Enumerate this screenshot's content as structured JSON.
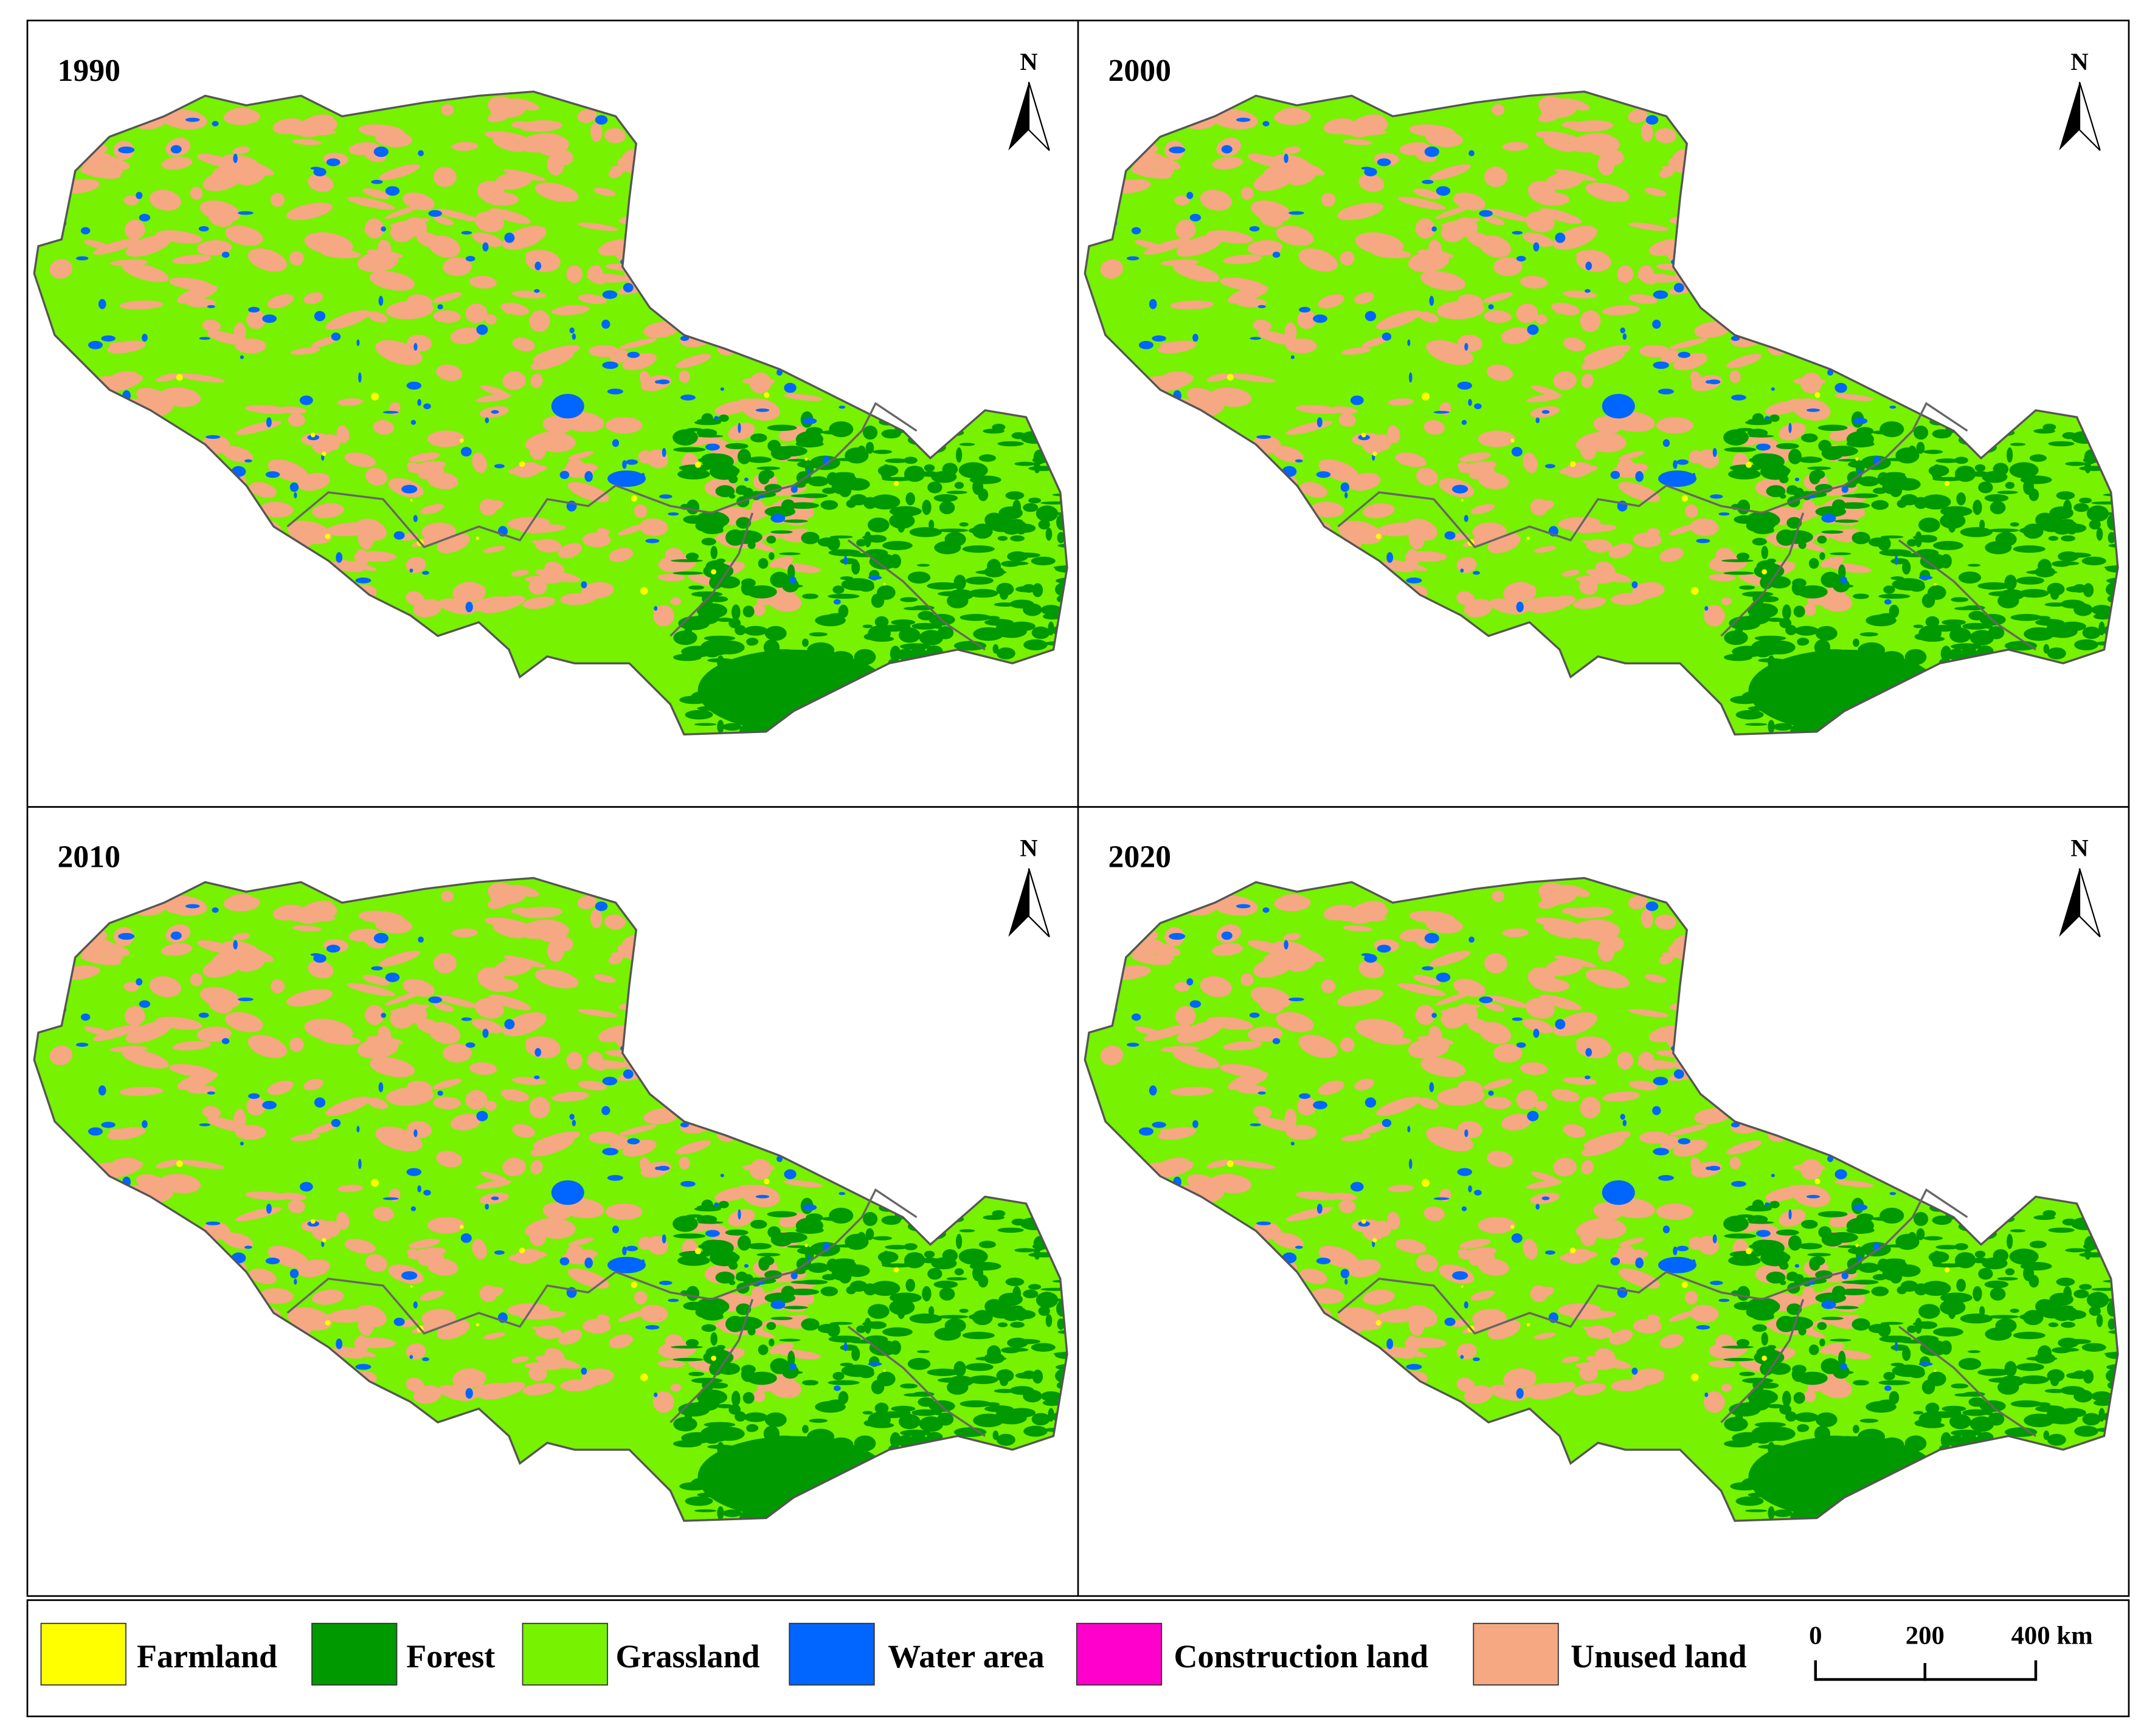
{
  "panels": [
    {
      "title": "1990",
      "north": "N"
    },
    {
      "title": "2000",
      "north": "N"
    },
    {
      "title": "2010",
      "north": "N"
    },
    {
      "title": "2020",
      "north": "N"
    }
  ],
  "legend": [
    {
      "label": "Farmland",
      "color": "#ffff00"
    },
    {
      "label": "Forest",
      "color": "#009900"
    },
    {
      "label": "Grassland",
      "color": "#77f200"
    },
    {
      "label": "Water area",
      "color": "#0066ff"
    },
    {
      "label": "Construction land",
      "color": "#ff00cc"
    },
    {
      "label": "Unused land",
      "color": "#f5a882"
    }
  ],
  "scale_bar": {
    "ticks": [
      "0",
      "200",
      "400 km"
    ]
  }
}
